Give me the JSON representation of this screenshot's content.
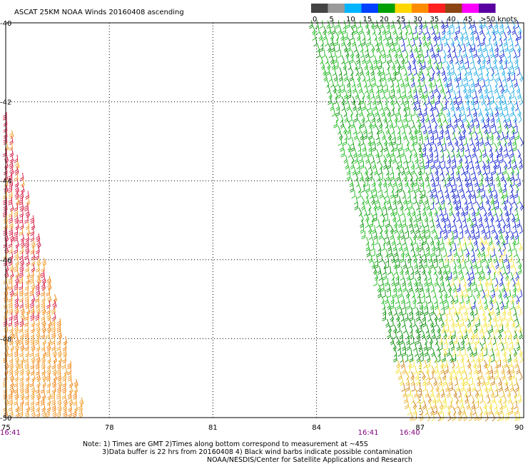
{
  "chart_data": {
    "type": "scatter",
    "title": "ASCAT 25KM NOAA Winds 20160408 ascending",
    "xlim": [
      75,
      90
    ],
    "ylim": [
      -50,
      -40
    ],
    "x_ticks": [
      "75",
      "78",
      "81",
      "84",
      "87",
      "90"
    ],
    "y_ticks": [
      "-40",
      "-42",
      "-44",
      "-46",
      "-48",
      "-50"
    ],
    "grid": true,
    "legend": {
      "placement": "top-right",
      "labels": [
        "0",
        "5",
        "10",
        "15",
        "20",
        "25",
        "30",
        "35",
        "40",
        "45",
        ">50 knots"
      ],
      "colors": [
        "#444444",
        "#9a9a9a",
        "#00b4ff",
        "#0040ff",
        "#00a000",
        "#ffd700",
        "#ff8c00",
        "#ff2020",
        "#8b4513",
        "#ff00ff",
        "#5a00a0"
      ]
    },
    "swaths": [
      {
        "name": "west swath",
        "time_label": "16:41",
        "time_lon": 75.1,
        "edge_lons": [
          [
            75.0,
            -41.8
          ],
          [
            77.4,
            -49.9
          ]
        ],
        "speed_knots_range": [
          23,
          34
        ],
        "color_group": [
          "orange",
          "red"
        ]
      },
      {
        "name": "east swath",
        "time_labels": [
          {
            "label": "16:41",
            "lon": 85.2
          },
          {
            "label": "16:40",
            "lon": 86.4
          }
        ],
        "edge_lons": [
          [
            83.8,
            -39.9
          ],
          [
            90.0,
            -39.9
          ],
          [
            90.0,
            -49.9
          ],
          [
            86.7,
            -49.9
          ]
        ],
        "speed_knots_range": [
          8,
          28
        ],
        "color_group": [
          "cyan",
          "blue",
          "green",
          "yellow",
          "orange"
        ]
      }
    ],
    "notes": [
      "Note: 1) Times are GMT 2)Times along bottom correspond to measurement at ~45S",
      "3)Data buffer is 22 hrs from 20160408 4) Black wind barbs indicate possible contamination",
      "NOAA/NESDIS/Center for Satellite Applications and Research"
    ]
  }
}
